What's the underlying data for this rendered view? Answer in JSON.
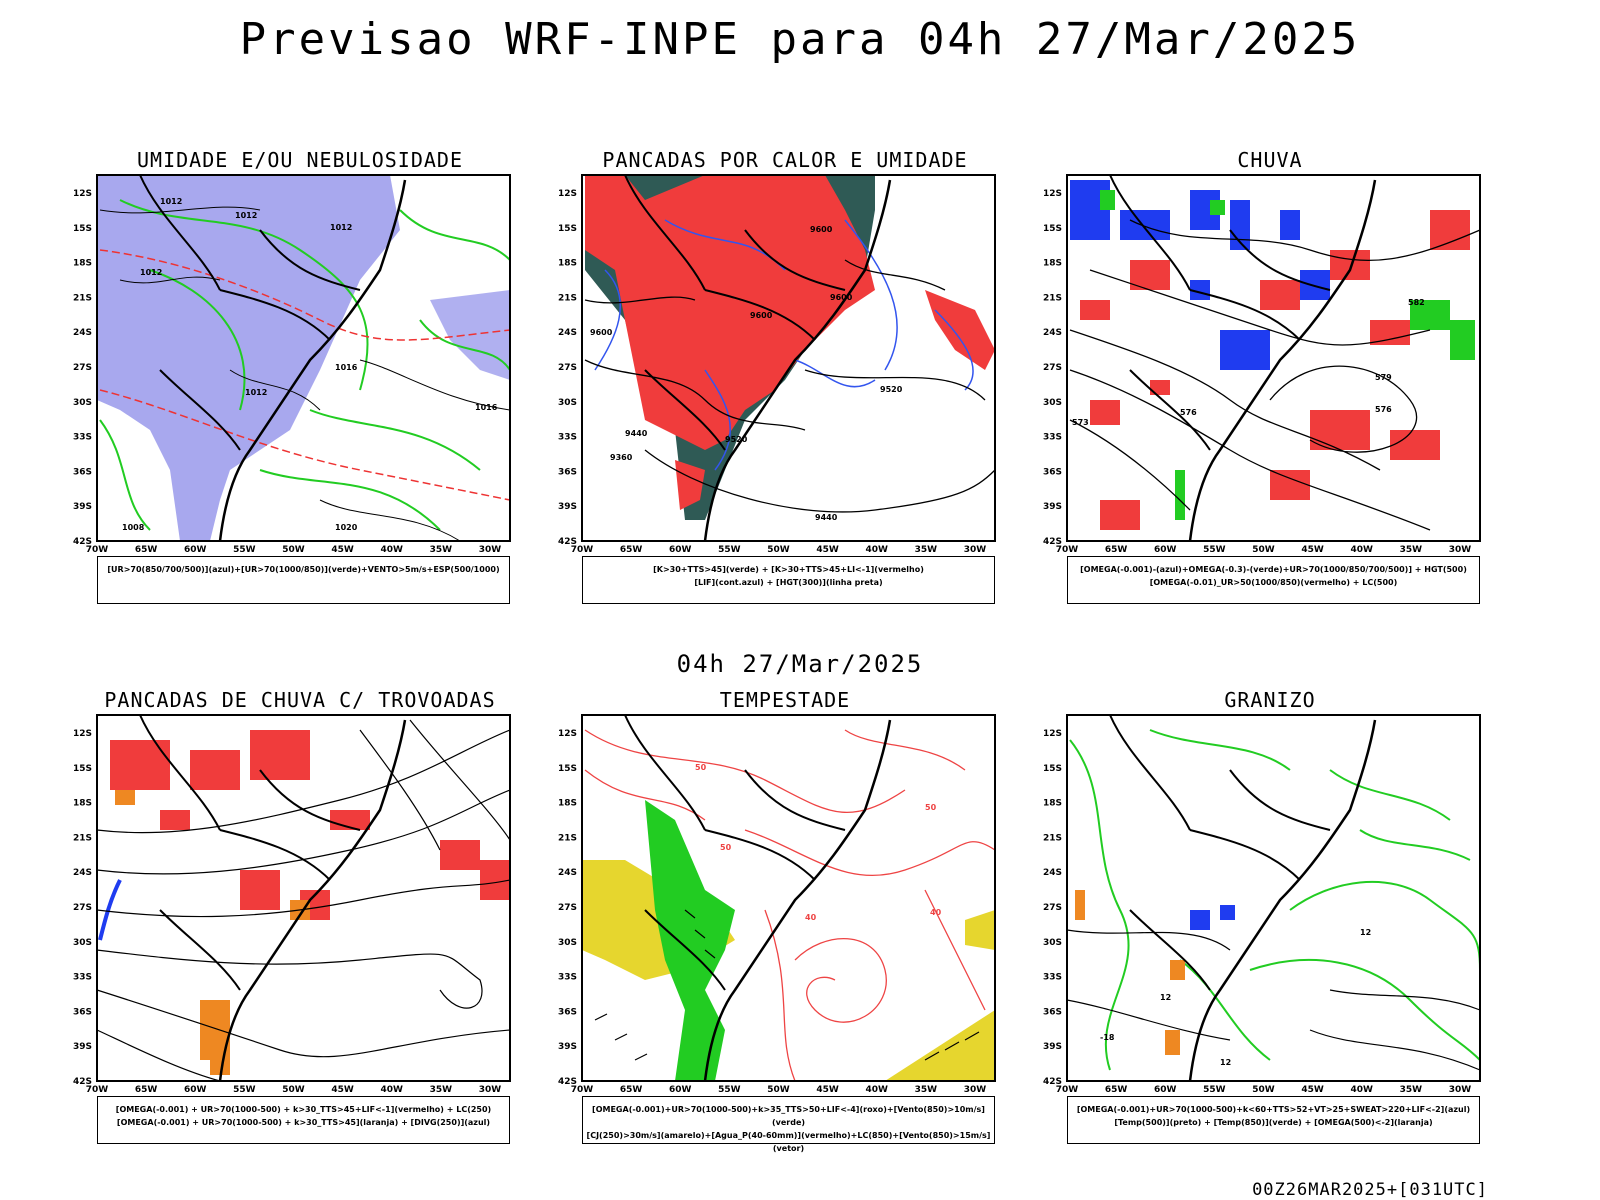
{
  "header": {
    "title": "Previsao WRF-INPE  para 04h 27/Mar/2025"
  },
  "mid_title": "04h 27/Mar/2025",
  "footer": "00Z26MAR2025+[031UTC]",
  "axes": {
    "lat_ticks": [
      "12S",
      "15S",
      "18S",
      "21S",
      "24S",
      "27S",
      "30S",
      "33S",
      "36S",
      "39S",
      "42S"
    ],
    "lon_ticks": [
      "70W",
      "65W",
      "60W",
      "55W",
      "50W",
      "45W",
      "40W",
      "35W",
      "30W"
    ]
  },
  "panels": [
    {
      "title": "UMIDADE E/OU NEBULOSIDADE",
      "legend": [
        "[UR>70(850/700/500)](azul)+[UR>70(1000/850)](verde)+VENTO>5m/s+ESP(500/1000)"
      ],
      "contour_labels": [
        "1012",
        "1012",
        "1012",
        "1012",
        "1016",
        "1016",
        "1012",
        "1020",
        "1008"
      ]
    },
    {
      "title": "PANCADAS POR CALOR E UMIDADE",
      "legend": [
        "[K>30+TTS>45](verde) + [K>30+TTS>45+LI<-1](vermelho)",
        "[LIF](cont.azul) + [HGT(300)](linha preta)"
      ],
      "contour_labels": [
        "9600",
        "9600",
        "9600",
        "9520",
        "9520",
        "9440",
        "9440",
        "9360",
        "9600"
      ]
    },
    {
      "title": "CHUVA",
      "legend": [
        "[OMEGA(-0.001)-(azul)+OMEGA(-0.3)-(verde)+UR>70(1000/850/700/500)] + HGT(500)",
        "[OMEGA(-0.01)_UR>50(1000/850)(vermelho) + LC(500)"
      ],
      "contour_labels": [
        "576",
        "573",
        "582",
        "576",
        "579"
      ]
    },
    {
      "title": "PANCADAS DE CHUVA C/ TROVOADAS",
      "legend": [
        "[OMEGA(-0.001) + UR>70(1000-500) + k>30_TTS>45+LIF<-1](vermelho) + LC(250)",
        "[OMEGA(-0.001) + UR>70(1000-500) + k>30_TTS>45](laranja) + [DIVG(250)](azul)"
      ],
      "contour_labels": []
    },
    {
      "title": "TEMPESTADE",
      "legend": [
        "[OMEGA(-0.001)+UR>70(1000-500)+k>35_TTS>50+LIF<-4](roxo)+[Vento(850)>10m/s](verde)",
        "[CJ(250)>30m/s](amarelo)+[Agua_P(40-60mm)](vermelho)+LC(850)+[Vento(850)>15m/s](vetor)"
      ],
      "contour_labels": [
        "50",
        "50",
        "40",
        "50",
        "40"
      ]
    },
    {
      "title": "GRANIZO",
      "legend": [
        "[OMEGA(-0.001)+UR>70(1000-500)+k<60+TTS>52+VT>25+SWEAT>220+LIF<-2](azul)",
        "[Temp(500)](preto) + [Temp(850)](verde) + [OMEGA(500)<-2](laranja)"
      ],
      "contour_labels": [
        "12",
        "-18",
        "12",
        "12"
      ]
    }
  ]
}
